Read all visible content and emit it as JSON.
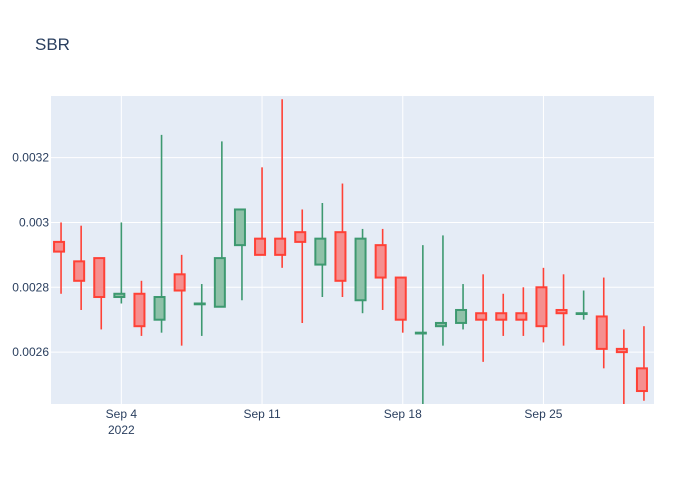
{
  "chart_data": {
    "type": "candlestick",
    "title": "SBR",
    "xlabel": "",
    "ylabel": "",
    "x_range": [
      "2022-08-31T12:00",
      "2022-09-30T12:00"
    ],
    "y_range": [
      0.00244,
      0.00339
    ],
    "x_ticks": [
      {
        "date": "2022-09-04",
        "label": "Sep 4",
        "sublabel": "2022"
      },
      {
        "date": "2022-09-11",
        "label": "Sep 11",
        "sublabel": ""
      },
      {
        "date": "2022-09-18",
        "label": "Sep 18",
        "sublabel": ""
      },
      {
        "date": "2022-09-25",
        "label": "Sep 25",
        "sublabel": ""
      }
    ],
    "y_ticks": [
      {
        "value": 0.0026,
        "label": "0.0026"
      },
      {
        "value": 0.0028,
        "label": "0.0028"
      },
      {
        "value": 0.003,
        "label": "0.003"
      },
      {
        "value": 0.0032,
        "label": "0.0032"
      }
    ],
    "grid": true,
    "legend": "none",
    "colors": {
      "increasing_line": "#3d9970",
      "increasing_fill": "#8fc1a8",
      "decreasing_line": "#ff4136",
      "decreasing_fill": "#f58f8f",
      "plot_bg": "#e5ecf6",
      "grid": "#ffffff",
      "text": "#2a3f5f"
    },
    "series": [
      {
        "date": "2022-09-01",
        "open": 0.00294,
        "high": 0.003,
        "low": 0.00278,
        "close": 0.00291
      },
      {
        "date": "2022-09-02",
        "open": 0.00288,
        "high": 0.00299,
        "low": 0.00273,
        "close": 0.00282
      },
      {
        "date": "2022-09-03",
        "open": 0.00289,
        "high": 0.00289,
        "low": 0.00267,
        "close": 0.00277
      },
      {
        "date": "2022-09-04",
        "open": 0.00277,
        "high": 0.003,
        "low": 0.00275,
        "close": 0.00278
      },
      {
        "date": "2022-09-05",
        "open": 0.00278,
        "high": 0.00282,
        "low": 0.00265,
        "close": 0.00268
      },
      {
        "date": "2022-09-06",
        "open": 0.0027,
        "high": 0.00327,
        "low": 0.00266,
        "close": 0.00277
      },
      {
        "date": "2022-09-07",
        "open": 0.00284,
        "high": 0.0029,
        "low": 0.00262,
        "close": 0.00279
      },
      {
        "date": "2022-09-08",
        "open": 0.00275,
        "high": 0.00281,
        "low": 0.00265,
        "close": 0.00275
      },
      {
        "date": "2022-09-09",
        "open": 0.00274,
        "high": 0.00325,
        "low": 0.00274,
        "close": 0.00289
      },
      {
        "date": "2022-09-10",
        "open": 0.00293,
        "high": 0.00304,
        "low": 0.00276,
        "close": 0.00304
      },
      {
        "date": "2022-09-11",
        "open": 0.00295,
        "high": 0.00317,
        "low": 0.0029,
        "close": 0.0029
      },
      {
        "date": "2022-09-12",
        "open": 0.00295,
        "high": 0.00338,
        "low": 0.00286,
        "close": 0.0029
      },
      {
        "date": "2022-09-13",
        "open": 0.00297,
        "high": 0.00304,
        "low": 0.00269,
        "close": 0.00294
      },
      {
        "date": "2022-09-14",
        "open": 0.00287,
        "high": 0.00306,
        "low": 0.00277,
        "close": 0.00295
      },
      {
        "date": "2022-09-15",
        "open": 0.00297,
        "high": 0.00312,
        "low": 0.00277,
        "close": 0.00282
      },
      {
        "date": "2022-09-16",
        "open": 0.00276,
        "high": 0.00298,
        "low": 0.00272,
        "close": 0.00295
      },
      {
        "date": "2022-09-17",
        "open": 0.00293,
        "high": 0.00298,
        "low": 0.00273,
        "close": 0.00283
      },
      {
        "date": "2022-09-18",
        "open": 0.00283,
        "high": 0.00283,
        "low": 0.00266,
        "close": 0.0027
      },
      {
        "date": "2022-09-19",
        "open": 0.00266,
        "high": 0.00293,
        "low": 0.00244,
        "close": 0.00266
      },
      {
        "date": "2022-09-20",
        "open": 0.00268,
        "high": 0.00296,
        "low": 0.00262,
        "close": 0.00269
      },
      {
        "date": "2022-09-21",
        "open": 0.00269,
        "high": 0.00281,
        "low": 0.00267,
        "close": 0.00273
      },
      {
        "date": "2022-09-22",
        "open": 0.00272,
        "high": 0.00284,
        "low": 0.00257,
        "close": 0.0027
      },
      {
        "date": "2022-09-23",
        "open": 0.00272,
        "high": 0.00278,
        "low": 0.00265,
        "close": 0.0027
      },
      {
        "date": "2022-09-24",
        "open": 0.00272,
        "high": 0.0028,
        "low": 0.00265,
        "close": 0.0027
      },
      {
        "date": "2022-09-25",
        "open": 0.0028,
        "high": 0.00286,
        "low": 0.00263,
        "close": 0.00268
      },
      {
        "date": "2022-09-26",
        "open": 0.00273,
        "high": 0.00284,
        "low": 0.00262,
        "close": 0.00272
      },
      {
        "date": "2022-09-27",
        "open": 0.00272,
        "high": 0.00279,
        "low": 0.0027,
        "close": 0.00272
      },
      {
        "date": "2022-09-28",
        "open": 0.00271,
        "high": 0.00283,
        "low": 0.00255,
        "close": 0.00261
      },
      {
        "date": "2022-09-29",
        "open": 0.00261,
        "high": 0.00267,
        "low": 0.00244,
        "close": 0.0026
      },
      {
        "date": "2022-09-30",
        "open": 0.00255,
        "high": 0.00268,
        "low": 0.00245,
        "close": 0.00248
      }
    ]
  }
}
